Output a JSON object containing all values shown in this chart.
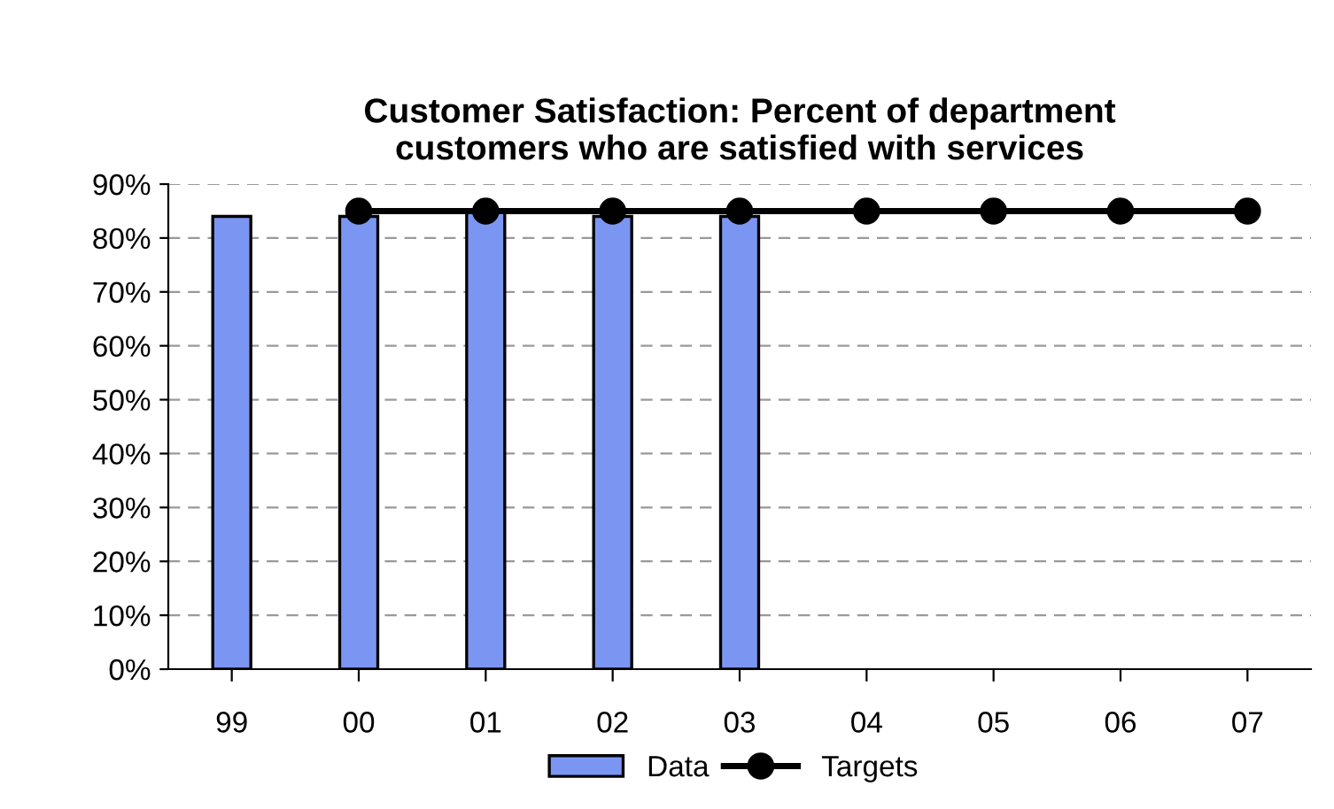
{
  "chart_data": {
    "type": "bar",
    "title": "Customer Satisfaction: Percent of department\ncustomers who are satisfied with services",
    "categories": [
      "99",
      "00",
      "01",
      "02",
      "03",
      "04",
      "05",
      "06",
      "07"
    ],
    "series": [
      {
        "name": "Data",
        "color": "#7b96f2",
        "values": [
          84,
          84,
          85,
          84,
          84,
          null,
          null,
          null,
          null
        ]
      },
      {
        "name": "Targets",
        "type": "line",
        "color": "#000000",
        "marker": "circle",
        "values": [
          null,
          85,
          85,
          85,
          85,
          85,
          85,
          85,
          85
        ]
      }
    ],
    "ylim": [
      0,
      90
    ],
    "yticks": [
      {
        "value": 0,
        "label": "0%"
      },
      {
        "value": 10,
        "label": "10%"
      },
      {
        "value": 20,
        "label": "20%"
      },
      {
        "value": 30,
        "label": "30%"
      },
      {
        "value": 40,
        "label": "40%"
      },
      {
        "value": 50,
        "label": "50%"
      },
      {
        "value": 60,
        "label": "60%"
      },
      {
        "value": 70,
        "label": "70%"
      },
      {
        "value": 80,
        "label": "80%"
      },
      {
        "value": 90,
        "label": "90%"
      }
    ],
    "grid": "y",
    "legend": "bottom"
  }
}
